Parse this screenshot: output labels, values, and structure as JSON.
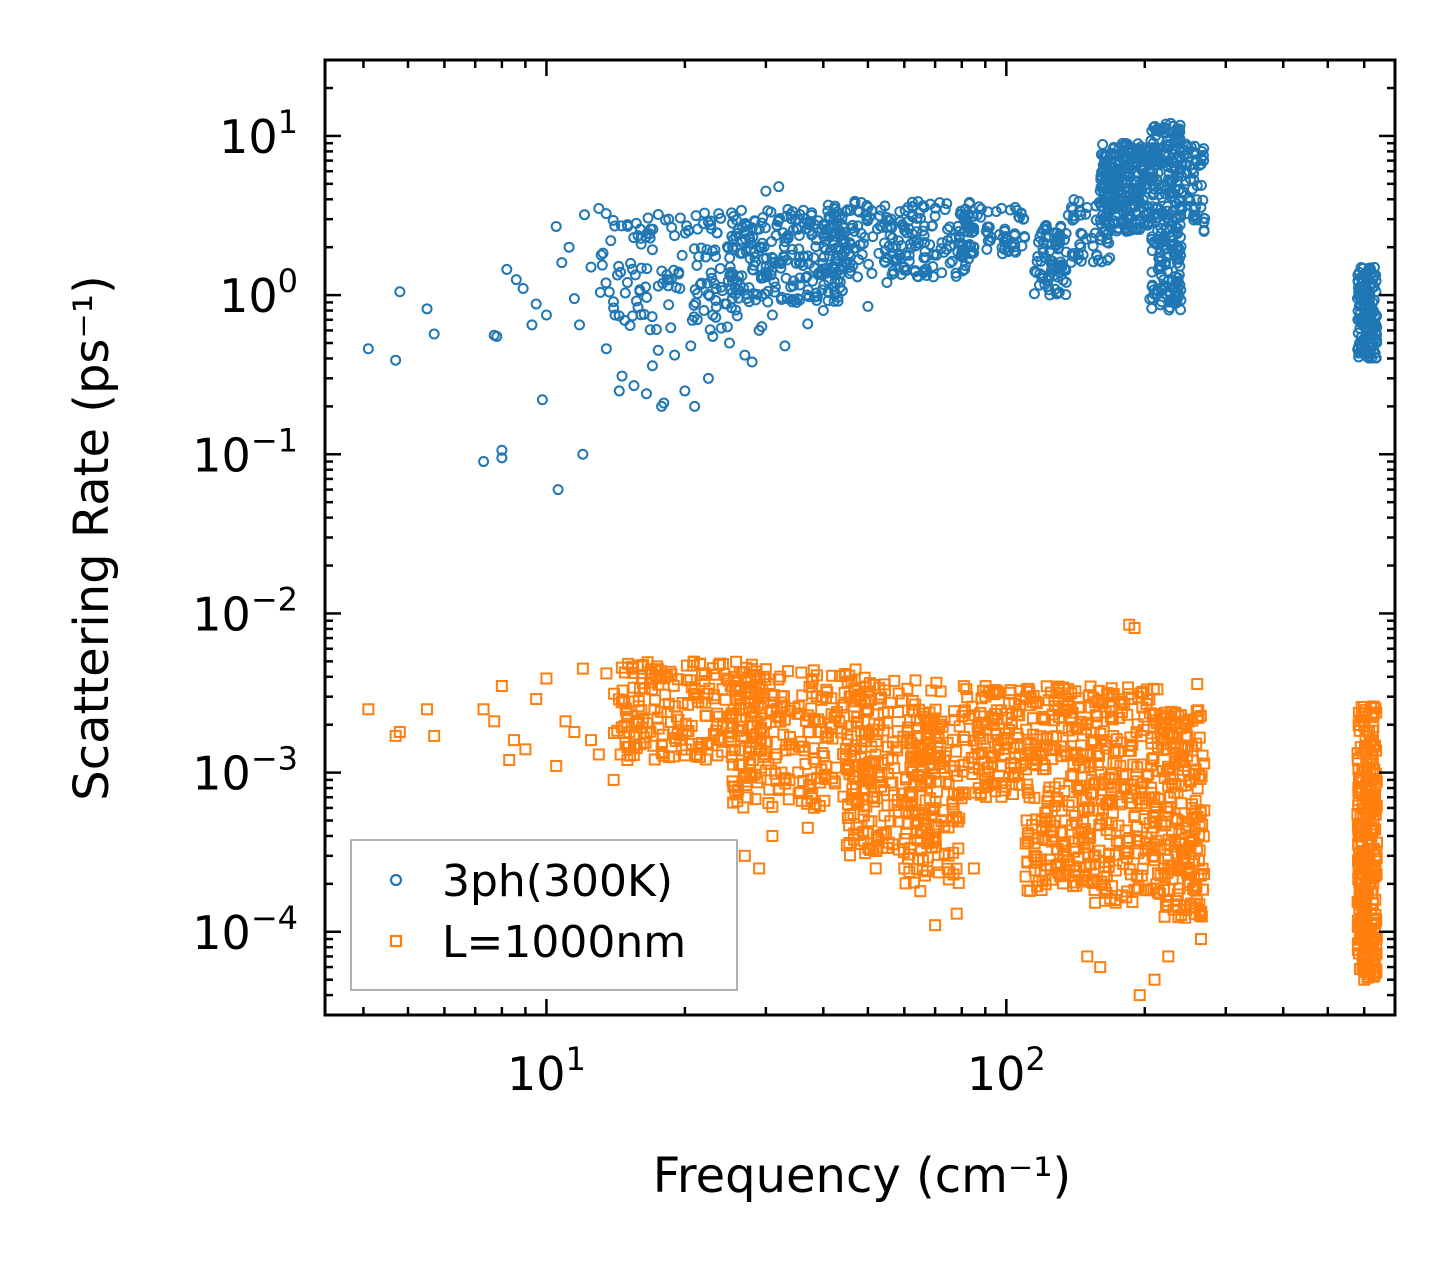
{
  "chart_data": {
    "type": "scatter",
    "title": "",
    "xlabel": "Frequency (cm⁻¹)",
    "ylabel": "Scattering Rate (ps⁻¹)",
    "xscale": "log",
    "yscale": "log",
    "xlim": [
      3.3,
      700
    ],
    "ylim": [
      3e-05,
      30
    ],
    "x_ticks": [
      {
        "value": 10,
        "base": "10",
        "exp": "1"
      },
      {
        "value": 100,
        "base": "10",
        "exp": "2"
      }
    ],
    "y_ticks": [
      {
        "value": 10,
        "base": "10",
        "exp": "1"
      },
      {
        "value": 1,
        "base": "10",
        "exp": "0"
      },
      {
        "value": 0.1,
        "base": "10",
        "exp": "−1"
      },
      {
        "value": 0.01,
        "base": "10",
        "exp": "−2"
      },
      {
        "value": 0.001,
        "base": "10",
        "exp": "−3"
      },
      {
        "value": 0.0001,
        "base": "10",
        "exp": "−4"
      }
    ],
    "legend_position": "lower-left",
    "series": [
      {
        "name": "3ph(300K)",
        "marker": "circle",
        "color": "#1f77b4",
        "points": [
          [
            4.1,
            0.46
          ],
          [
            4.7,
            0.39
          ],
          [
            4.8,
            1.05
          ],
          [
            5.5,
            0.82
          ],
          [
            5.7,
            0.57
          ],
          [
            7.3,
            0.09
          ],
          [
            7.7,
            0.56
          ],
          [
            7.8,
            0.55
          ],
          [
            8.0,
            0.095
          ],
          [
            8.0,
            0.106
          ],
          [
            8.2,
            1.45
          ],
          [
            8.6,
            1.25
          ],
          [
            8.9,
            1.1
          ],
          [
            9.3,
            0.65
          ],
          [
            9.5,
            0.88
          ],
          [
            9.8,
            0.22
          ],
          [
            10.0,
            0.75
          ],
          [
            10.5,
            2.7
          ],
          [
            10.6,
            0.06
          ],
          [
            10.8,
            1.6
          ],
          [
            11.2,
            2.0
          ],
          [
            11.5,
            0.95
          ],
          [
            11.8,
            0.65
          ],
          [
            12.0,
            0.1
          ],
          [
            12.1,
            3.2
          ],
          [
            12.5,
            1.5
          ],
          [
            13.0,
            3.5
          ],
          [
            13.5,
            0.46
          ],
          [
            13.8,
            2.2
          ],
          [
            14.0,
            0.83
          ],
          [
            14.4,
            0.25
          ],
          [
            14.6,
            0.31
          ],
          [
            15.0,
            1.2
          ],
          [
            15.5,
            0.27
          ],
          [
            16.0,
            2.6
          ],
          [
            16.5,
            0.24
          ],
          [
            17.0,
            0.36
          ],
          [
            17.5,
            0.45
          ],
          [
            17.8,
            0.2
          ],
          [
            18.0,
            0.21
          ],
          [
            19.0,
            0.42
          ],
          [
            19.5,
            1.1
          ],
          [
            20.0,
            0.25
          ],
          [
            20.6,
            0.48
          ],
          [
            21.0,
            0.2
          ],
          [
            22.0,
            0.8
          ],
          [
            22.5,
            0.3
          ],
          [
            23.0,
            0.55
          ],
          [
            24.0,
            0.62
          ],
          [
            25.0,
            0.5
          ],
          [
            26.0,
            0.74
          ],
          [
            27.0,
            0.42
          ],
          [
            28.0,
            0.38
          ],
          [
            29.0,
            0.6
          ],
          [
            30.0,
            4.5
          ],
          [
            31.0,
            0.75
          ],
          [
            32.0,
            4.8
          ],
          [
            33.0,
            0.48
          ],
          [
            35.0,
            0.9
          ],
          [
            37.0,
            0.66
          ],
          [
            40.0,
            0.8
          ],
          [
            45.0,
            1.6
          ],
          [
            50.0,
            0.85
          ],
          [
            55.0,
            1.2
          ],
          [
            60.0,
            1.5
          ]
        ],
        "bands": [
          {
            "x": [
              13,
              30
            ],
            "y": [
              0.6,
              3.3
            ],
            "n": 150
          },
          {
            "x": [
              25,
              45
            ],
            "y": [
              0.9,
              3.5
            ],
            "n": 230
          },
          {
            "x": [
              40,
              85
            ],
            "y": [
              1.3,
              4.0
            ],
            "n": 230
          },
          {
            "x": [
              80,
              110
            ],
            "y": [
              1.8,
              3.6
            ],
            "n": 70
          },
          {
            "x": [
              115,
              135
            ],
            "y": [
              1.0,
              3.0
            ],
            "n": 80
          },
          {
            "x": [
              135,
              170
            ],
            "y": [
              1.6,
              4.0
            ],
            "n": 50
          },
          {
            "x": [
              160,
              205
            ],
            "y": [
              2.5,
              9.0
            ],
            "n": 260
          },
          {
            "x": [
              205,
              240
            ],
            "y": [
              0.8,
              12.0
            ],
            "n": 260
          },
          {
            "x": [
              240,
              270
            ],
            "y": [
              2.5,
              9.0
            ],
            "n": 60
          },
          {
            "x": [
              580,
              640
            ],
            "y": [
              0.4,
              1.5
            ],
            "n": 160
          }
        ]
      },
      {
        "name": "L=1000nm",
        "marker": "square",
        "color": "#ff7f0e",
        "points": [
          [
            4.1,
            0.0025
          ],
          [
            4.7,
            0.0017
          ],
          [
            4.8,
            0.0018
          ],
          [
            5.5,
            0.0025
          ],
          [
            5.7,
            0.0017
          ],
          [
            7.3,
            0.0025
          ],
          [
            7.7,
            0.0021
          ],
          [
            8.0,
            0.0035
          ],
          [
            8.3,
            0.0012
          ],
          [
            8.5,
            0.0016
          ],
          [
            9.0,
            0.0014
          ],
          [
            9.5,
            0.0029
          ],
          [
            10.0,
            0.0039
          ],
          [
            10.5,
            0.0011
          ],
          [
            11.0,
            0.0021
          ],
          [
            11.5,
            0.0018
          ],
          [
            12.0,
            0.0045
          ],
          [
            12.5,
            0.0016
          ],
          [
            13.0,
            0.0013
          ],
          [
            13.5,
            0.0042
          ],
          [
            14.0,
            0.0009
          ],
          [
            14.5,
            0.0013
          ],
          [
            15.0,
            0.0012
          ],
          [
            27.0,
            0.0003
          ],
          [
            29.0,
            0.00025
          ],
          [
            31.0,
            0.0004
          ],
          [
            37.0,
            0.00045
          ],
          [
            45.0,
            0.00035
          ],
          [
            52.0,
            0.00025
          ],
          [
            60.0,
            0.00025
          ],
          [
            65.0,
            0.00018
          ],
          [
            70.0,
            0.00011
          ],
          [
            78.0,
            0.00013
          ],
          [
            85.0,
            0.00025
          ],
          [
            115.0,
            0.0003
          ],
          [
            125.0,
            0.00025
          ],
          [
            150.0,
            7e-05
          ],
          [
            160.0,
            6e-05
          ],
          [
            180.0,
            0.0008
          ],
          [
            185.0,
            0.0085
          ],
          [
            190.0,
            0.0081
          ],
          [
            195.0,
            4e-05
          ],
          [
            210.0,
            5e-05
          ],
          [
            225.0,
            7e-05
          ],
          [
            260.0,
            0.0036
          ],
          [
            265.0,
            9e-05
          ],
          [
            600.0,
            5e-05
          ]
        ],
        "bands": [
          {
            "x": [
              14,
              30
            ],
            "y": [
              0.0012,
              0.005
            ],
            "n": 220
          },
          {
            "x": [
              25,
              50
            ],
            "y": [
              0.0006,
              0.0045
            ],
            "n": 260
          },
          {
            "x": [
              45,
              72
            ],
            "y": [
              0.0003,
              0.0038
            ],
            "n": 230
          },
          {
            "x": [
              60,
              80
            ],
            "y": [
              0.0002,
              0.0025
            ],
            "n": 120
          },
          {
            "x": [
              80,
              108
            ],
            "y": [
              0.0007,
              0.0035
            ],
            "n": 130
          },
          {
            "x": [
              110,
              150
            ],
            "y": [
              0.00018,
              0.0035
            ],
            "n": 230
          },
          {
            "x": [
              150,
              215
            ],
            "y": [
              0.00015,
              0.0035
            ],
            "n": 260
          },
          {
            "x": [
              215,
              270
            ],
            "y": [
              0.00012,
              0.0025
            ],
            "n": 220
          },
          {
            "x": [
              580,
              640
            ],
            "y": [
              5e-05,
              0.0027
            ],
            "n": 320
          }
        ]
      }
    ]
  }
}
